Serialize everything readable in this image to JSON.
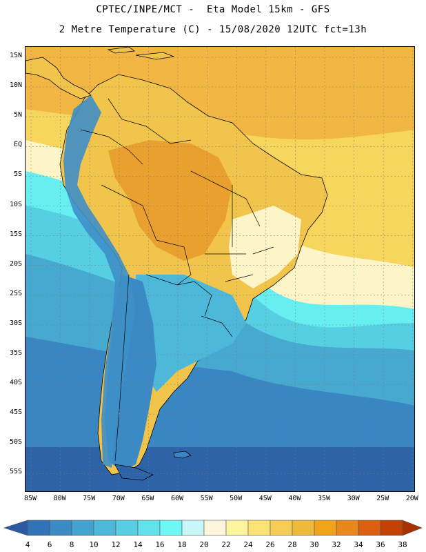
{
  "header": {
    "line1": "CPTEC/INPE/MCT -  Eta Model 15km - GFS",
    "line2": "2 Metre Temperature (C) - 15/08/2020 12UTC fct=13h"
  },
  "map": {
    "lat_labels": [
      "15N",
      "10N",
      "5N",
      "EQ",
      "5S",
      "10S",
      "15S",
      "20S",
      "25S",
      "30S",
      "35S",
      "40S",
      "45S",
      "50S",
      "55S"
    ],
    "lon_labels": [
      "85W",
      "80W",
      "75W",
      "70W",
      "65W",
      "60W",
      "55W",
      "50W",
      "45W",
      "40W",
      "35W",
      "30W",
      "25W",
      "20W"
    ],
    "colors": {
      "ocean_far_south": "#2e63a8",
      "ocean_south": "#3a86c2",
      "ocean_mid": "#47a9cf",
      "ocean_cyan": "#56cfe3",
      "ocean_light_cyan": "#66eef0",
      "tropics_orange": "#f2b642",
      "tropics_yellow": "#f6cd55",
      "land_warm": "#f1c44c",
      "land_hot": "#e9a02e",
      "andes": "#3e8fc8",
      "border": "#000000"
    }
  },
  "colorbar": {
    "values": [
      4,
      6,
      8,
      10,
      12,
      14,
      16,
      18,
      20,
      22,
      24,
      26,
      28,
      30,
      32,
      34,
      36,
      38
    ],
    "colors": [
      "#2b5aa3",
      "#3173b7",
      "#3b8ac6",
      "#44a2cf",
      "#4db8da",
      "#57cee3",
      "#61e2ea",
      "#6ff7f5",
      "#c9f6f9",
      "#fdf5dc",
      "#fdf4a0",
      "#fbe274",
      "#f5cd56",
      "#efb93c",
      "#f0a21a",
      "#e9871d",
      "#db5f10",
      "#c44106",
      "#a83104"
    ]
  }
}
